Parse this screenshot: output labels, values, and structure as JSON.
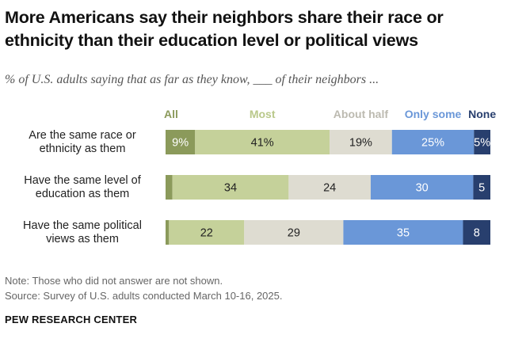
{
  "header": {
    "title": "More Americans say their neighbors share their race or ethnicity than their education level or political views",
    "subtitle": "% of U.S. adults saying that as far as they know, ___ of their neighbors ..."
  },
  "chart_data": {
    "type": "bar",
    "orientation": "horizontal",
    "stacked": true,
    "legend_placement": "top",
    "grid": false,
    "categories": [
      [
        "Are the same race or",
        "ethnicity as them"
      ],
      [
        "Have the same level of",
        "education as them"
      ],
      [
        "Have the same political",
        "views as them"
      ]
    ],
    "series": [
      {
        "name": "All",
        "color": "#8b9a5b",
        "text_color": "#ffffff",
        "legend_color": "#8b9a5b",
        "values": [
          9,
          2,
          1
        ],
        "labels": [
          "9%",
          "",
          ""
        ]
      },
      {
        "name": "Most",
        "color": "#c5d19a",
        "text_color": "#222222",
        "legend_color": "#b9c88a",
        "values": [
          41,
          34,
          22
        ],
        "labels": [
          "41%",
          "34",
          "22"
        ]
      },
      {
        "name": "About half",
        "color": "#dedcd1",
        "text_color": "#222222",
        "legend_color": "#bcbab0",
        "values": [
          19,
          24,
          29
        ],
        "labels": [
          "19%",
          "24",
          "29"
        ]
      },
      {
        "name": "Only some",
        "color": "#6a97d8",
        "text_color": "#ffffff",
        "legend_color": "#6a97d8",
        "values": [
          25,
          30,
          35
        ],
        "labels": [
          "25%",
          "30",
          "35"
        ]
      },
      {
        "name": "None",
        "color": "#283f6e",
        "text_color": "#ffffff",
        "legend_color": "#283f6e",
        "values": [
          5,
          5,
          8
        ],
        "labels": [
          "5%",
          "5",
          "8"
        ]
      }
    ]
  },
  "footer": {
    "note": "Note: Those who did not answer are not shown.",
    "source": "Source: Survey of U.S. adults conducted March 10-16, 2025.",
    "brand": "PEW RESEARCH CENTER"
  }
}
